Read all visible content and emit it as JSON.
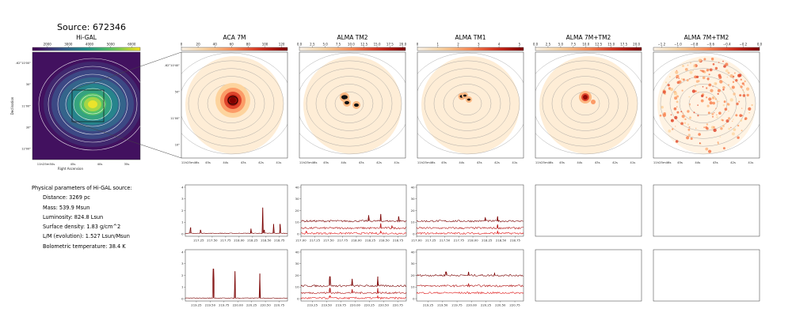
{
  "figure": {
    "title": "Source: 672346",
    "params_heading": "Physical parameters of Hi-GAL source:",
    "params": [
      "Distance: 3269 pc",
      "Mass: 539.9 Msun",
      "Luminosity: 824.8 Lsun",
      "Surface density: 1.83 g/cm^2",
      "L/M (evolution): 1.527 Lsun/Msun",
      "Bolometric temperature: 38.4 K"
    ]
  },
  "chart_data": [
    {
      "type": "heatmap",
      "title": "Hi-GAL",
      "colormap": "viridis",
      "colorbar_ticks": [
        "2000",
        "3000",
        "4000",
        "5000",
        "6000"
      ],
      "colorbar_range": [
        1300,
        6400
      ],
      "ylabel": "Declination",
      "xlabel": "Right Ascension",
      "y_ticks": [
        "-62°10'00\"",
        "30\"",
        "11'00\"",
        "30\"",
        "12'00\""
      ],
      "x_ticks": [
        "11h25m50s",
        "45s",
        "40s",
        "35s"
      ]
    },
    {
      "type": "heatmap",
      "title": "ACA 7M",
      "colormap": "OrRd",
      "colorbar_ticks": [
        "0",
        "20",
        "40",
        "60",
        "80",
        "100",
        "120"
      ],
      "colorbar_range": [
        0,
        127
      ],
      "y_ticks": [
        "-62°10'40\"",
        "50\"",
        "11'00\"",
        "10\""
      ],
      "x_ticks": [
        "11h25m46s",
        "45s",
        "44s",
        "43s",
        "42s",
        "41s"
      ]
    },
    {
      "type": "heatmap",
      "title": "ALMA TM2",
      "colormap": "OrRd",
      "colorbar_ticks": [
        "0.0",
        "2.5",
        "5.0",
        "7.5",
        "10.0",
        "12.5",
        "15.0",
        "17.5",
        "20.0"
      ],
      "colorbar_range": [
        0,
        20.5
      ],
      "x_ticks": [
        "11h25m46s",
        "45s",
        "44s",
        "43s",
        "42s",
        "41s"
      ]
    },
    {
      "type": "heatmap",
      "title": "ALMA TM1",
      "colormap": "OrRd",
      "colorbar_ticks": [
        "0",
        "1",
        "2",
        "3",
        "4",
        "5"
      ],
      "colorbar_range": [
        0,
        5.2
      ],
      "x_ticks": [
        "11h25m46s",
        "45s",
        "44s",
        "43s",
        "42s",
        "41s"
      ]
    },
    {
      "type": "heatmap",
      "title": "ALMA 7M+TM2",
      "colormap": "OrRd",
      "colorbar_ticks": [
        "0.0",
        "2.5",
        "5.0",
        "7.5",
        "10.0",
        "12.5",
        "15.0",
        "17.5",
        "20.0"
      ],
      "colorbar_range": [
        0,
        21
      ],
      "x_ticks": [
        "11h25m46s",
        "45s",
        "44s",
        "43s",
        "42s",
        "41s"
      ]
    },
    {
      "type": "heatmap",
      "title": "ALMA 7M+TM2",
      "colormap": "OrRd",
      "colorbar_ticks": [
        "−1.2",
        "−1.0",
        "−0.8",
        "−0.6",
        "−0.4",
        "−0.2",
        "0.0"
      ],
      "colorbar_range": [
        -1.3,
        0
      ],
      "x_ticks": [
        "11h25m46s",
        "45s",
        "44s",
        "43s",
        "42s",
        "41s"
      ]
    },
    {
      "type": "line",
      "panel": "ACA 7M spectrum, upper band",
      "xlim": [
        217.0,
        218.9
      ],
      "ylim": [
        -0.2,
        4.2
      ],
      "x_ticks": [
        "217.25",
        "217.50",
        "217.75",
        "218.00",
        "218.25",
        "218.50",
        "218.75"
      ],
      "y_ticks": [
        "0",
        "1",
        "2",
        "3",
        "4"
      ],
      "series": [
        {
          "baseline": 0.05,
          "lines": [
            [
              217.1,
              0.5
            ],
            [
              217.28,
              0.3
            ],
            [
              218.22,
              0.4
            ],
            [
              218.44,
              2.2
            ],
            [
              218.47,
              0.3
            ],
            [
              218.64,
              0.8
            ],
            [
              218.76,
              0.8
            ]
          ]
        }
      ]
    },
    {
      "type": "line",
      "panel": "ALMA TM2 spectrum, upper band",
      "xlim": [
        217.0,
        218.9
      ],
      "ylim": [
        -2,
        42
      ],
      "x_ticks": [
        "217.00",
        "217.25",
        "217.50",
        "217.75",
        "218.00",
        "218.25",
        "218.50",
        "218.75"
      ],
      "y_ticks": [
        "0",
        "10",
        "20",
        "30",
        "40"
      ],
      "series": [
        {
          "baseline": 11,
          "lines": [
            [
              218.22,
              5
            ],
            [
              218.44,
              6
            ],
            [
              218.76,
              4
            ]
          ]
        },
        {
          "baseline": 5,
          "lines": [
            [
              218.44,
              4
            ],
            [
              218.64,
              2
            ]
          ]
        },
        {
          "baseline": 0.5,
          "lines": [
            [
              217.1,
              2
            ],
            [
              218.44,
              2
            ]
          ]
        }
      ]
    },
    {
      "type": "line",
      "panel": "ALMA TM1 spectrum, upper band",
      "xlim": [
        217.0,
        218.9
      ],
      "ylim": [
        -2,
        42
      ],
      "x_ticks": [
        "217.00",
        "217.25",
        "217.50",
        "217.75",
        "218.00",
        "218.25",
        "218.50",
        "218.75"
      ],
      "y_ticks": [
        "0",
        "10",
        "20",
        "30",
        "40"
      ],
      "series": [
        {
          "baseline": 11,
          "lines": [
            [
              218.22,
              3
            ],
            [
              218.44,
              4
            ]
          ]
        },
        {
          "baseline": 5,
          "lines": [
            [
              218.44,
              3
            ]
          ]
        },
        {
          "baseline": 0.5,
          "lines": [
            [
              218.44,
              2
            ]
          ]
        }
      ]
    },
    {
      "type": "line",
      "panel": "ACA 7M spectrum, lower band",
      "xlim": [
        219.05,
        220.9
      ],
      "ylim": [
        -0.2,
        4.2
      ],
      "x_ticks": [
        "219.25",
        "219.50",
        "219.75",
        "220.00",
        "220.25",
        "220.50",
        "220.75"
      ],
      "y_ticks": [
        "0",
        "1",
        "2",
        "3",
        "4"
      ],
      "series": [
        {
          "baseline": 0.05,
          "lines": [
            [
              219.56,
              2.5
            ],
            [
              219.95,
              2.3
            ],
            [
              220.4,
              2.1
            ]
          ]
        }
      ]
    },
    {
      "type": "line",
      "panel": "ALMA TM2 spectrum, lower band",
      "xlim": [
        219.05,
        220.9
      ],
      "ylim": [
        -2,
        42
      ],
      "x_ticks": [
        "219.25",
        "219.50",
        "219.75",
        "220.00",
        "220.25",
        "220.50",
        "220.75"
      ],
      "y_ticks": [
        "0",
        "10",
        "20",
        "30",
        "40"
      ],
      "series": [
        {
          "baseline": 11,
          "lines": [
            [
              219.56,
              8
            ],
            [
              219.95,
              6
            ],
            [
              220.4,
              8
            ]
          ]
        },
        {
          "baseline": 5,
          "lines": [
            [
              219.56,
              4
            ],
            [
              219.95,
              3
            ],
            [
              220.4,
              4
            ]
          ]
        },
        {
          "baseline": 0.5,
          "lines": [
            [
              219.56,
              2
            ],
            [
              220.4,
              2
            ]
          ]
        }
      ]
    },
    {
      "type": "line",
      "panel": "ALMA TM1 spectrum, lower band",
      "xlim": [
        219.05,
        220.9
      ],
      "ylim": [
        -2,
        42
      ],
      "x_ticks": [
        "219.25",
        "219.50",
        "219.75",
        "220.00",
        "220.25",
        "220.50",
        "220.75"
      ],
      "y_ticks": [
        "0",
        "10",
        "20",
        "30",
        "40"
      ],
      "series": [
        {
          "baseline": 20,
          "lines": [
            [
              219.56,
              3
            ],
            [
              219.95,
              3
            ],
            [
              220.4,
              2
            ]
          ]
        },
        {
          "baseline": 11,
          "lines": [
            [
              219.95,
              2
            ]
          ]
        },
        {
          "baseline": 5,
          "lines": []
        }
      ]
    }
  ]
}
